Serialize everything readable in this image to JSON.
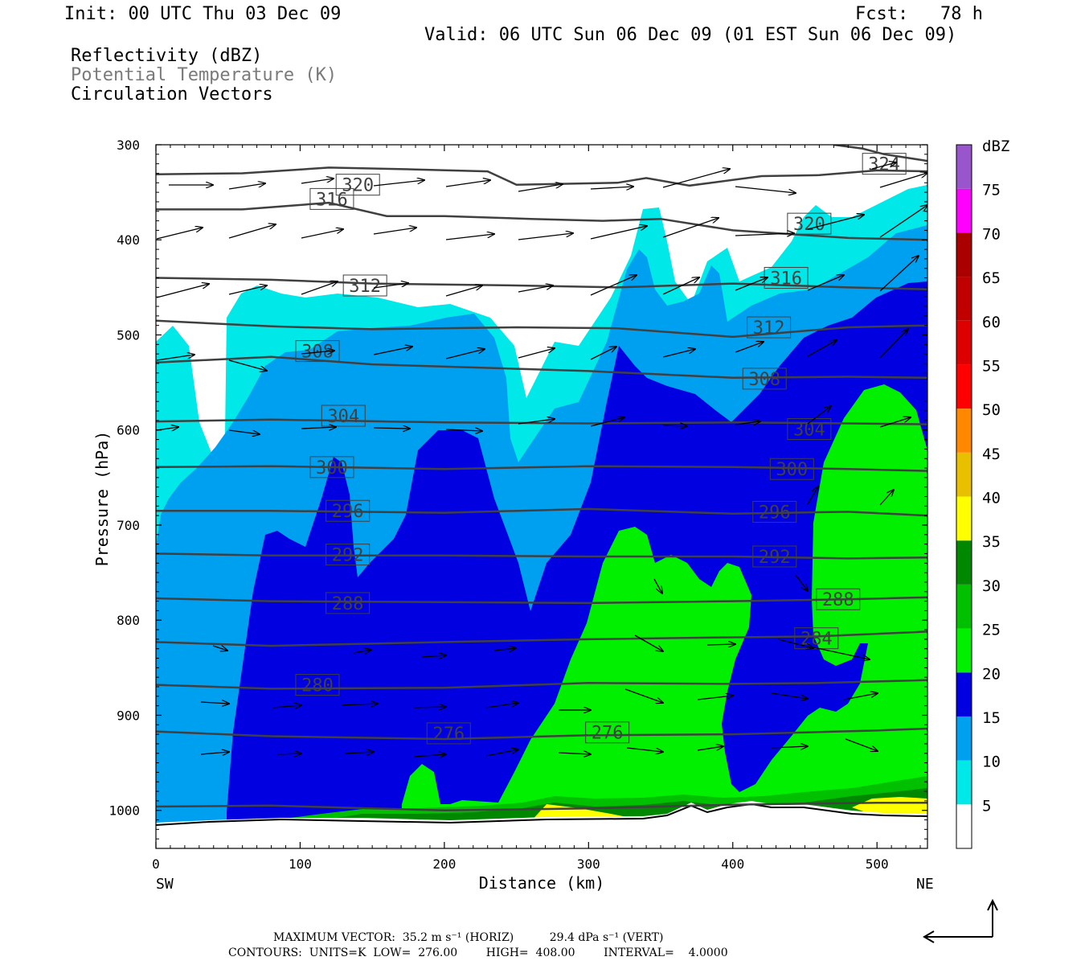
{
  "header": {
    "init": "Init: 00 UTC Thu 03 Dec 09",
    "fcst": "Fcst:   78 h",
    "valid": "Valid: 06 UTC Sun 06 Dec 09 (01 EST Sun 06 Dec 09)",
    "field1": "Reflectivity (dBZ)",
    "field2": "Potential Temperature (K)",
    "field3": "Circulation Vectors"
  },
  "colors": {
    "c5": "#00e8e8",
    "c10": "#00a0f0",
    "c15": "#0000e0",
    "c20": "#00f000",
    "c25": "#00c000",
    "c30": "#008800",
    "c35": "#ffff00",
    "c40": "#e8c000",
    "c45": "#ff8800",
    "c50": "#ff0000",
    "c55": "#dd0000",
    "c60": "#c00000",
    "c65": "#aa0000",
    "c70": "#ff00ff",
    "c75": "#9955cc",
    "contour": "#404040"
  },
  "chart_data": {
    "type": "heatmap",
    "title": "",
    "xlabel": "Distance (km)",
    "ylabel": "Pressure (hPa)",
    "xlim": [
      0,
      535
    ],
    "ylim": [
      1040,
      300
    ],
    "x_ticks": [
      0,
      100,
      200,
      300,
      400,
      500
    ],
    "y_ticks": [
      300,
      400,
      500,
      600,
      700,
      800,
      900,
      1000
    ],
    "x_ends": {
      "left": "SW",
      "right": "NE"
    },
    "colorbar": {
      "units": "dBZ",
      "levels": [
        5,
        10,
        15,
        20,
        25,
        30,
        35,
        40,
        45,
        50,
        55,
        60,
        65,
        70,
        75
      ]
    },
    "theta_contours": {
      "units": "K",
      "labels": [
        {
          "text": "324",
          "x": 505,
          "p": 320
        },
        {
          "text": "320",
          "x": 140,
          "p": 342
        },
        {
          "text": "320",
          "x": 453,
          "p": 383
        },
        {
          "text": "316",
          "x": 122,
          "p": 357
        },
        {
          "text": "316",
          "x": 437,
          "p": 440
        },
        {
          "text": "312",
          "x": 145,
          "p": 448
        },
        {
          "text": "312",
          "x": 425,
          "p": 492
        },
        {
          "text": "308",
          "x": 112,
          "p": 517
        },
        {
          "text": "308",
          "x": 422,
          "p": 546
        },
        {
          "text": "304",
          "x": 130,
          "p": 585
        },
        {
          "text": "304",
          "x": 453,
          "p": 599
        },
        {
          "text": "300",
          "x": 122,
          "p": 639
        },
        {
          "text": "300",
          "x": 441,
          "p": 641
        },
        {
          "text": "296",
          "x": 133,
          "p": 685
        },
        {
          "text": "296",
          "x": 429,
          "p": 686
        },
        {
          "text": "292",
          "x": 133,
          "p": 731
        },
        {
          "text": "292",
          "x": 429,
          "p": 733
        },
        {
          "text": "288",
          "x": 133,
          "p": 782
        },
        {
          "text": "288",
          "x": 473,
          "p": 778
        },
        {
          "text": "284",
          "x": 458,
          "p": 819
        },
        {
          "text": "280",
          "x": 112,
          "p": 868
        },
        {
          "text": "276",
          "x": 203,
          "p": 919
        },
        {
          "text": "276",
          "x": 313,
          "p": 918
        }
      ]
    }
  },
  "footer": {
    "line1": "MAXIMUM VECTOR:  35.2 m s⁻¹ (HORIZ)          29.4 dPa s⁻¹ (VERT)",
    "line2": "CONTOURS:  UNITS=K  LOW=  276.00        HIGH=  408.00        INTERVAL=    4.0000"
  }
}
